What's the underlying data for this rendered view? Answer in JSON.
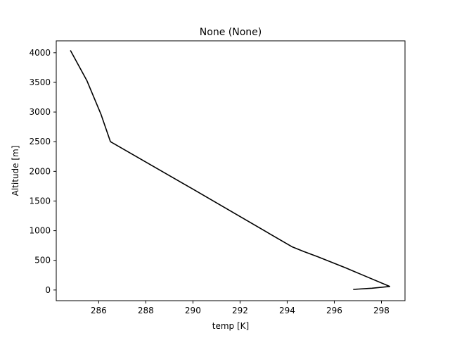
{
  "chart_data": {
    "type": "line",
    "title": "None (None)",
    "xlabel": "temp [K]",
    "ylabel": "Altitude [m]",
    "xlim": [
      284.2,
      299.0
    ],
    "ylim": [
      -180,
      4200
    ],
    "xticks": [
      286,
      288,
      290,
      292,
      294,
      296,
      298
    ],
    "yticks": [
      0,
      500,
      1000,
      1500,
      2000,
      2500,
      3000,
      3500,
      4000
    ],
    "grid": false,
    "legend": "none",
    "series": [
      {
        "color": "#000000",
        "x": [
          296.8,
          297.6,
          298.35,
          296.5,
          295.3,
          294.7,
          294.2,
          290.0,
          286.5,
          286.1,
          285.5,
          284.8
        ],
        "y": [
          10,
          30,
          60,
          370,
          560,
          650,
          730,
          1700,
          2500,
          2960,
          3530,
          4040
        ]
      }
    ]
  }
}
